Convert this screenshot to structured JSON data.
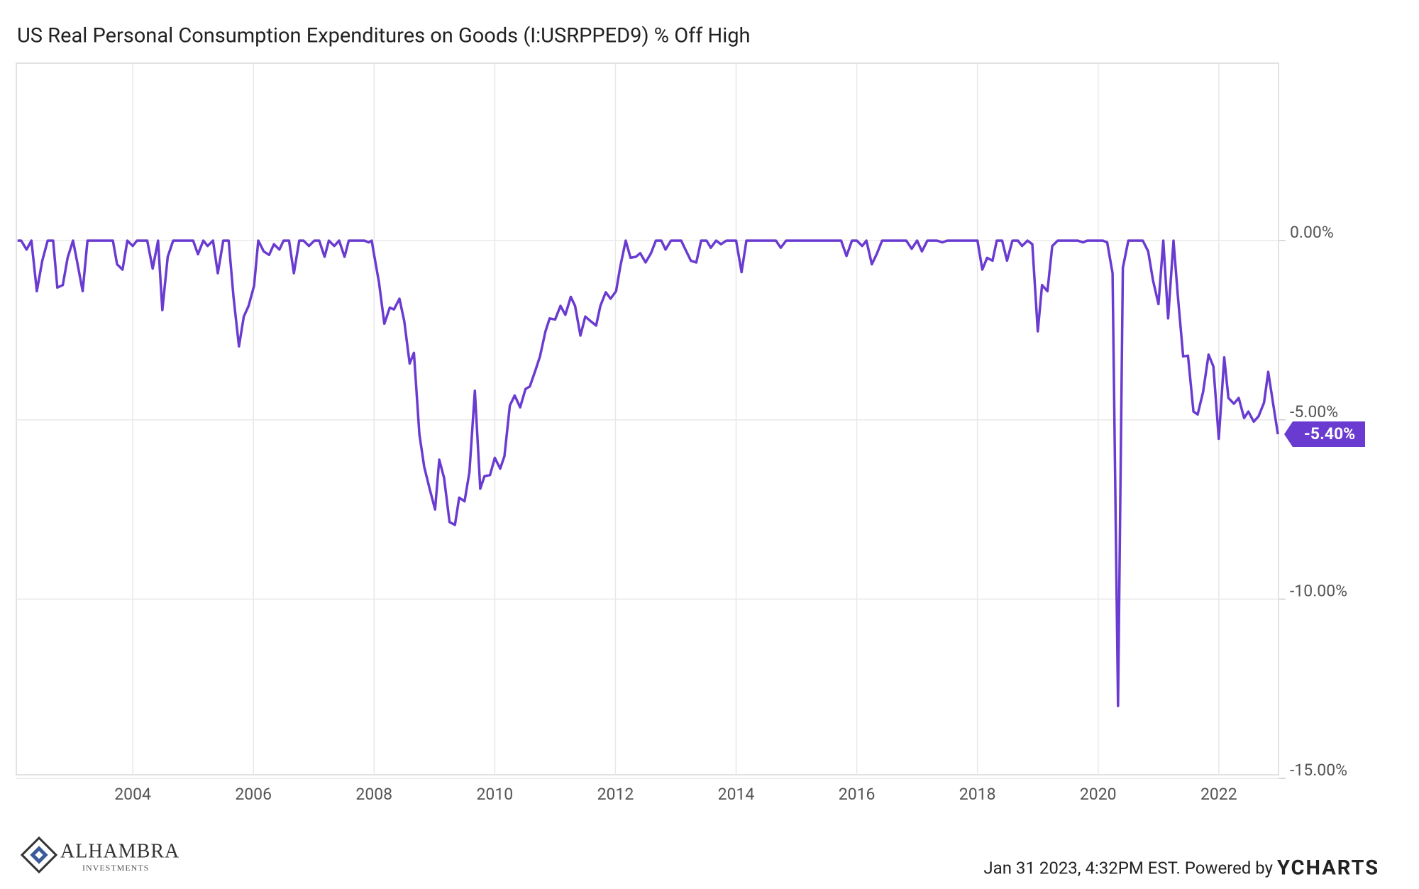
{
  "chart_data": {
    "type": "line",
    "title": "US Real Personal Consumption Expenditures on Goods (I:USRPPED9) % Off High",
    "xlim": [
      2002.07,
      2022.99
    ],
    "xticks": [
      2004,
      2006,
      2008,
      2010,
      2012,
      2014,
      2016,
      2018,
      2020,
      2022
    ],
    "ylim": [
      -14.9,
      4.95
    ],
    "yticks": [
      {
        "value": 0,
        "label": "0.00%"
      },
      {
        "value": -5,
        "label": "-5.00%"
      },
      {
        "value": -10,
        "label": "-10.00%"
      },
      {
        "value": -15,
        "label": "-15.00%"
      }
    ],
    "grid": true,
    "series": [
      {
        "name": "US Real Personal Consumption Expenditures on Goods",
        "color": "#6a3bd0",
        "end_label": "-5.40%",
        "x": [
          2002.09,
          2002.15,
          2002.24,
          2002.32,
          2002.41,
          2002.5,
          2002.59,
          2002.68,
          2002.75,
          2002.84,
          2002.92,
          2003.01,
          2003.08,
          2003.17,
          2003.25,
          2003.67,
          2003.74,
          2003.83,
          2003.91,
          2004.0,
          2004.07,
          2004.24,
          2004.33,
          2004.42,
          2004.49,
          2004.58,
          2004.67,
          2005.0,
          2005.08,
          2005.17,
          2005.24,
          2005.33,
          2005.41,
          2005.5,
          2005.59,
          2005.67,
          2005.76,
          2005.84,
          2005.92,
          2006.01,
          2006.08,
          2006.17,
          2006.26,
          2006.34,
          2006.43,
          2006.5,
          2006.59,
          2006.67,
          2006.76,
          2006.83,
          2006.92,
          2007.01,
          2007.09,
          2007.18,
          2007.25,
          2007.34,
          2007.42,
          2007.51,
          2007.58,
          2007.84,
          2007.91,
          2007.96,
          2008.0,
          2008.08,
          2008.17,
          2008.26,
          2008.33,
          2008.42,
          2008.5,
          2008.59,
          2008.66,
          2008.75,
          2008.83,
          2008.92,
          2009.01,
          2009.08,
          2009.16,
          2009.25,
          2009.34,
          2009.41,
          2009.5,
          2009.58,
          2009.67,
          2009.76,
          2009.83,
          2009.92,
          2010.0,
          2010.09,
          2010.16,
          2010.25,
          2010.33,
          2010.42,
          2010.51,
          2010.58,
          2010.67,
          2010.75,
          2010.84,
          2010.91,
          2011.0,
          2011.09,
          2011.17,
          2011.26,
          2011.33,
          2011.42,
          2011.5,
          2011.59,
          2011.68,
          2011.75,
          2011.84,
          2011.92,
          2012.01,
          2012.08,
          2012.17,
          2012.25,
          2012.34,
          2012.41,
          2012.5,
          2012.59,
          2012.67,
          2012.76,
          2012.83,
          2012.92,
          2013.09,
          2013.16,
          2013.25,
          2013.34,
          2013.42,
          2013.51,
          2013.58,
          2013.67,
          2013.75,
          2013.84,
          2014.0,
          2014.09,
          2014.17,
          2014.66,
          2014.74,
          2014.83,
          2015.74,
          2015.83,
          2015.92,
          2016.0,
          2016.09,
          2016.16,
          2016.25,
          2016.33,
          2016.42,
          2016.82,
          2016.91,
          2017.0,
          2017.08,
          2017.17,
          2017.33,
          2017.42,
          2017.5,
          2018.0,
          2018.08,
          2018.16,
          2018.25,
          2018.32,
          2018.41,
          2018.49,
          2018.58,
          2018.67,
          2018.74,
          2018.83,
          2018.91,
          2019.0,
          2019.07,
          2019.16,
          2019.24,
          2019.33,
          2019.66,
          2019.75,
          2019.82,
          2020.08,
          2020.15,
          2020.24,
          2020.33,
          2020.41,
          2020.5,
          2020.74,
          2020.83,
          2020.91,
          2021.0,
          2021.08,
          2021.16,
          2021.25,
          2021.32,
          2021.41,
          2021.49,
          2021.58,
          2021.65,
          2021.74,
          2021.83,
          2021.91,
          2022.0,
          2022.09,
          2022.16,
          2022.25,
          2022.33,
          2022.42,
          2022.49,
          2022.58,
          2022.66,
          2022.75,
          2022.82,
          2022.91,
          2022.98
        ],
        "values": [
          0,
          0,
          -0.25,
          0,
          -1.41,
          -0.56,
          0,
          0,
          -1.31,
          -1.24,
          -0.48,
          0,
          -0.61,
          -1.41,
          0,
          0,
          -0.66,
          -0.81,
          0,
          -0.15,
          0,
          0,
          -0.78,
          0,
          -1.94,
          -0.45,
          0,
          0,
          -0.38,
          0,
          -0.15,
          0,
          -0.91,
          0,
          0,
          -1.57,
          -2.95,
          -2.12,
          -1.82,
          -1.26,
          0,
          -0.3,
          -0.4,
          -0.1,
          -0.25,
          0,
          0,
          -0.91,
          0,
          0,
          -0.15,
          0,
          0,
          -0.45,
          0,
          -0.15,
          0,
          -0.45,
          0,
          0,
          -0.05,
          0,
          -0.4,
          -1.16,
          -2.32,
          -1.87,
          -1.92,
          -1.62,
          -2.25,
          -3.43,
          -3.13,
          -5.4,
          -6.31,
          -6.92,
          -7.5,
          -6.11,
          -6.62,
          -7.85,
          -7.93,
          -7.17,
          -7.27,
          -6.46,
          -4.19,
          -6.92,
          -6.57,
          -6.54,
          -6.06,
          -6.36,
          -6.01,
          -4.6,
          -4.32,
          -4.65,
          -4.14,
          -4.07,
          -3.64,
          -3.23,
          -2.53,
          -2.17,
          -2.2,
          -1.82,
          -2.07,
          -1.57,
          -1.82,
          -2.65,
          -2.12,
          -2.25,
          -2.37,
          -1.82,
          -1.44,
          -1.62,
          -1.41,
          -0.73,
          0,
          -0.48,
          -0.45,
          -0.35,
          -0.61,
          -0.35,
          0,
          0,
          -0.25,
          0,
          0,
          -0.25,
          -0.56,
          -0.61,
          0,
          0,
          -0.2,
          0,
          -0.1,
          0,
          0,
          -0.88,
          0,
          0,
          -0.2,
          0,
          0,
          -0.43,
          0,
          0,
          -0.15,
          0,
          -0.66,
          -0.38,
          0,
          0,
          -0.23,
          0,
          -0.3,
          0,
          0,
          -0.05,
          0,
          0,
          -0.81,
          -0.48,
          -0.56,
          0,
          0,
          -0.56,
          0,
          0,
          -0.15,
          0,
          -0.1,
          -2.53,
          -1.24,
          -1.41,
          -0.15,
          0,
          0,
          -0.05,
          0,
          0,
          -0.05,
          -0.91,
          -12.98,
          -0.76,
          0,
          0,
          -0.3,
          -1.11,
          -1.77,
          0,
          -2.17,
          0,
          -1.52,
          -3.23,
          -3.21,
          -4.77,
          -4.85,
          -4.22,
          -3.18,
          -3.51,
          -5.53,
          -3.26,
          -4.39,
          -4.55,
          -4.39,
          -4.95,
          -4.77,
          -5.05,
          -4.9,
          -4.52,
          -3.66,
          -4.65,
          -5.4
        ]
      }
    ]
  },
  "footer": {
    "logo_name": "ALHAMBRA",
    "logo_sub": "INVESTMENTS",
    "timestamp": "Jan 31 2023, 4:32PM EST. Powered by",
    "brand": "YCHARTS"
  }
}
